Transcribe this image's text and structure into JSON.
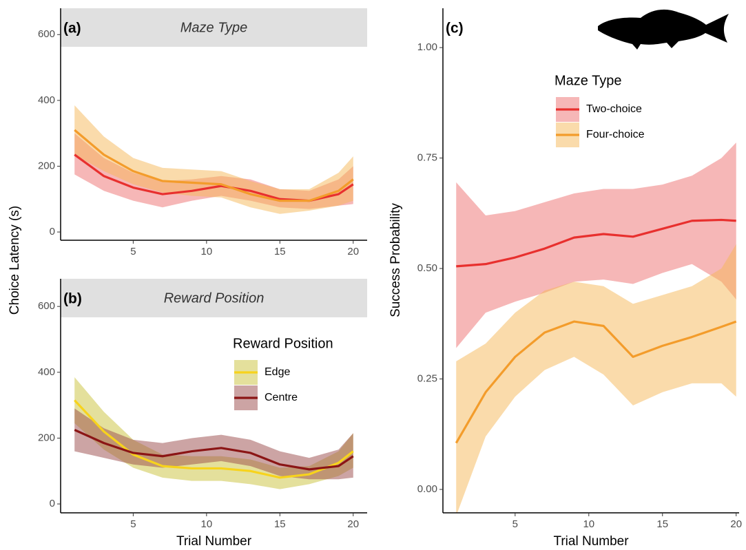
{
  "chart_data": [
    {
      "type": "line",
      "panel_label": "(a)",
      "strip": "Maze Type",
      "ylabel": "Choice Latency (s)",
      "x": [
        1,
        3,
        5,
        7,
        9,
        11,
        13,
        15,
        17,
        19,
        20
      ],
      "series": [
        {
          "color": "#e8302e",
          "band_color": "#ee6f6f",
          "values": [
            235,
            170,
            135,
            115,
            125,
            140,
            125,
            100,
            95,
            115,
            145
          ],
          "upper": [
            300,
            225,
            180,
            155,
            160,
            170,
            160,
            130,
            125,
            160,
            200
          ],
          "lower": [
            175,
            125,
            95,
            75,
            95,
            110,
            95,
            75,
            70,
            80,
            85
          ]
        },
        {
          "color": "#f39c2b",
          "band_color": "#f6b857",
          "values": [
            310,
            235,
            185,
            155,
            150,
            145,
            115,
            95,
            95,
            125,
            160
          ],
          "upper": [
            385,
            290,
            225,
            195,
            190,
            185,
            155,
            130,
            130,
            180,
            230
          ],
          "lower": [
            235,
            185,
            145,
            120,
            110,
            105,
            75,
            55,
            65,
            80,
            95
          ]
        }
      ],
      "xlim": [
        0.05,
        20.95
      ],
      "ylim": [
        -25,
        680
      ],
      "xticks": [
        5,
        10,
        15,
        20
      ],
      "yticks": [
        0,
        200,
        400,
        600
      ]
    },
    {
      "type": "line",
      "panel_label": "(b)",
      "strip": "Reward Position",
      "xlabel": "Trial Number",
      "legend_title": "Reward Position",
      "x": [
        1,
        3,
        5,
        7,
        9,
        11,
        13,
        15,
        17,
        19,
        20
      ],
      "series": [
        {
          "name": "Edge",
          "color": "#f7d31c",
          "band_color": "#c9c23a",
          "values": [
            315,
            220,
            150,
            115,
            108,
            108,
            100,
            80,
            90,
            125,
            160
          ],
          "upper": [
            385,
            280,
            195,
            150,
            145,
            145,
            135,
            110,
            115,
            160,
            215
          ],
          "lower": [
            245,
            165,
            110,
            80,
            70,
            70,
            60,
            45,
            60,
            85,
            110
          ]
        },
        {
          "name": "Centre",
          "color": "#8b1515",
          "band_color": "#9a4a4a",
          "values": [
            225,
            185,
            155,
            145,
            160,
            170,
            155,
            120,
            105,
            115,
            145
          ],
          "upper": [
            290,
            230,
            195,
            185,
            200,
            210,
            195,
            160,
            140,
            165,
            215
          ],
          "lower": [
            160,
            140,
            120,
            110,
            120,
            130,
            115,
            85,
            75,
            75,
            80
          ]
        }
      ],
      "xlim": [
        0.05,
        20.95
      ],
      "ylim": [
        -27,
        684
      ],
      "xticks": [
        5,
        10,
        15,
        20
      ],
      "yticks": [
        0,
        200,
        400,
        600
      ]
    },
    {
      "type": "line",
      "panel_label": "(c)",
      "xlabel": "Trial Number",
      "ylabel": "Success Probability",
      "legend_title": "Maze Type",
      "x": [
        1,
        3,
        5,
        7,
        9,
        11,
        13,
        15,
        17,
        19,
        20
      ],
      "series": [
        {
          "name": "Two-choice",
          "color": "#e8302e",
          "band_color": "#ee6f6f",
          "values": [
            0.505,
            0.51,
            0.525,
            0.545,
            0.57,
            0.578,
            0.572,
            0.59,
            0.608,
            0.61,
            0.608
          ],
          "upper": [
            0.695,
            0.62,
            0.63,
            0.65,
            0.67,
            0.68,
            0.68,
            0.69,
            0.71,
            0.75,
            0.785
          ],
          "lower": [
            0.32,
            0.4,
            0.425,
            0.445,
            0.47,
            0.475,
            0.465,
            0.49,
            0.51,
            0.47,
            0.43
          ]
        },
        {
          "name": "Four-choice",
          "color": "#f39c2b",
          "band_color": "#f6b857",
          "values": [
            0.105,
            0.22,
            0.3,
            0.355,
            0.38,
            0.37,
            0.3,
            0.325,
            0.345,
            0.368,
            0.38
          ],
          "upper": [
            0.29,
            0.33,
            0.4,
            0.45,
            0.47,
            0.46,
            0.42,
            0.44,
            0.46,
            0.5,
            0.555
          ],
          "lower": [
            -0.06,
            0.12,
            0.21,
            0.27,
            0.3,
            0.26,
            0.19,
            0.22,
            0.24,
            0.24,
            0.21
          ]
        }
      ],
      "xlim": [
        0.1,
        20.2
      ],
      "ylim": [
        -0.053,
        1.089
      ],
      "xticks": [
        5,
        10,
        15,
        20
      ],
      "yticks": [
        {
          "value": 0,
          "label": "0.00"
        },
        {
          "value": 0.25,
          "label": "0.25"
        },
        {
          "value": 0.5,
          "label": "0.50"
        },
        {
          "value": 0.75,
          "label": "0.75"
        },
        {
          "value": 1,
          "label": "1.00"
        }
      ]
    }
  ]
}
